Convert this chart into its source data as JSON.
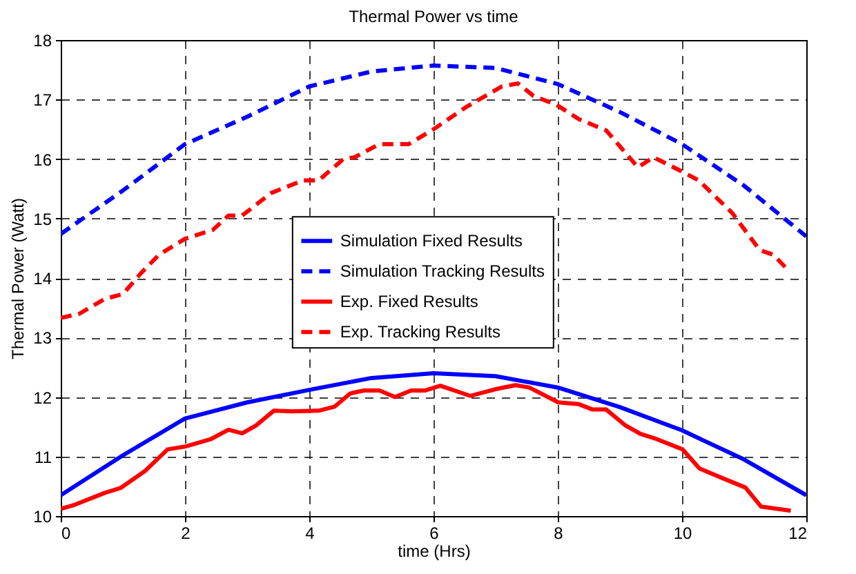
{
  "chart_data": {
    "type": "line",
    "title": "Thermal Power vs time",
    "xlabel": "time (Hrs)",
    "ylabel": "Thermal Power (Watt)",
    "xlim": [
      0,
      12
    ],
    "xticks": [
      0,
      2,
      4,
      6,
      8,
      10,
      12
    ],
    "ylim": [
      10,
      18
    ],
    "yticks": [
      10,
      11,
      12,
      13,
      14,
      15,
      16,
      17,
      18
    ],
    "grid": true,
    "legend": "center",
    "series": [
      {
        "name": "Simulation Fixed Results",
        "color": "#0000ff",
        "line_style": "solid",
        "x": [
          0,
          1,
          2,
          3,
          4,
          5,
          6,
          7,
          8,
          9,
          10,
          11,
          12
        ],
        "values": [
          10.35,
          11.02,
          11.64,
          11.91,
          12.12,
          12.32,
          12.4,
          12.35,
          12.16,
          11.83,
          11.44,
          10.95,
          10.35
        ]
      },
      {
        "name": "Simulation Tracking Results",
        "color": "#0000ff",
        "line_style": "dashed",
        "x": [
          0,
          1,
          2,
          3,
          4,
          5,
          6,
          7,
          8,
          9,
          10,
          11,
          12
        ],
        "values": [
          14.74,
          15.47,
          16.25,
          16.71,
          17.22,
          17.47,
          17.57,
          17.53,
          17.26,
          16.79,
          16.25,
          15.55,
          14.7
        ]
      },
      {
        "name": "Exp. Fixed Results",
        "color": "#ff0000",
        "line_style": "solid",
        "x": [
          0,
          0.2,
          0.71,
          0.96,
          1.36,
          1.72,
          2.01,
          2.41,
          2.7,
          2.92,
          3.14,
          3.43,
          3.72,
          4.15,
          4.41,
          4.66,
          4.88,
          5.13,
          5.38,
          5.64,
          5.86,
          6.11,
          6.59,
          6.99,
          7.32,
          7.54,
          8.01,
          8.34,
          8.56,
          8.78,
          9.08,
          9.33,
          9.55,
          10.01,
          10.28,
          10.76,
          11.02,
          11.27,
          11.75
        ],
        "values": [
          10.12,
          10.18,
          10.39,
          10.47,
          10.76,
          11.12,
          11.17,
          11.29,
          11.45,
          11.39,
          11.52,
          11.77,
          11.76,
          11.77,
          11.84,
          12.06,
          12.11,
          12.11,
          12.0,
          12.11,
          12.11,
          12.19,
          12.02,
          12.13,
          12.2,
          12.16,
          11.91,
          11.88,
          11.79,
          11.79,
          11.53,
          11.38,
          11.31,
          11.12,
          10.8,
          10.59,
          10.48,
          10.16,
          10.09
        ]
      },
      {
        "name": "Exp. Tracking Results",
        "color": "#ff0000",
        "line_style": "dashed",
        "x": [
          0,
          0.3,
          0.71,
          1.0,
          1.29,
          1.58,
          2.0,
          2.45,
          2.7,
          2.92,
          3.39,
          3.9,
          4.15,
          4.55,
          4.73,
          5.13,
          5.6,
          6.0,
          6.52,
          7.1,
          7.36,
          7.61,
          7.98,
          8.34,
          8.78,
          9.29,
          9.54,
          9.98,
          10.27,
          10.81,
          11.25,
          11.47,
          11.72
        ],
        "values": [
          13.33,
          13.4,
          13.65,
          13.73,
          14.08,
          14.39,
          14.66,
          14.81,
          15.05,
          15.05,
          15.43,
          15.64,
          15.64,
          16.0,
          16.03,
          16.25,
          16.25,
          16.5,
          16.87,
          17.22,
          17.27,
          17.06,
          16.91,
          16.67,
          16.48,
          15.86,
          16.03,
          15.8,
          15.64,
          15.09,
          14.47,
          14.39,
          14.12
        ]
      }
    ]
  }
}
